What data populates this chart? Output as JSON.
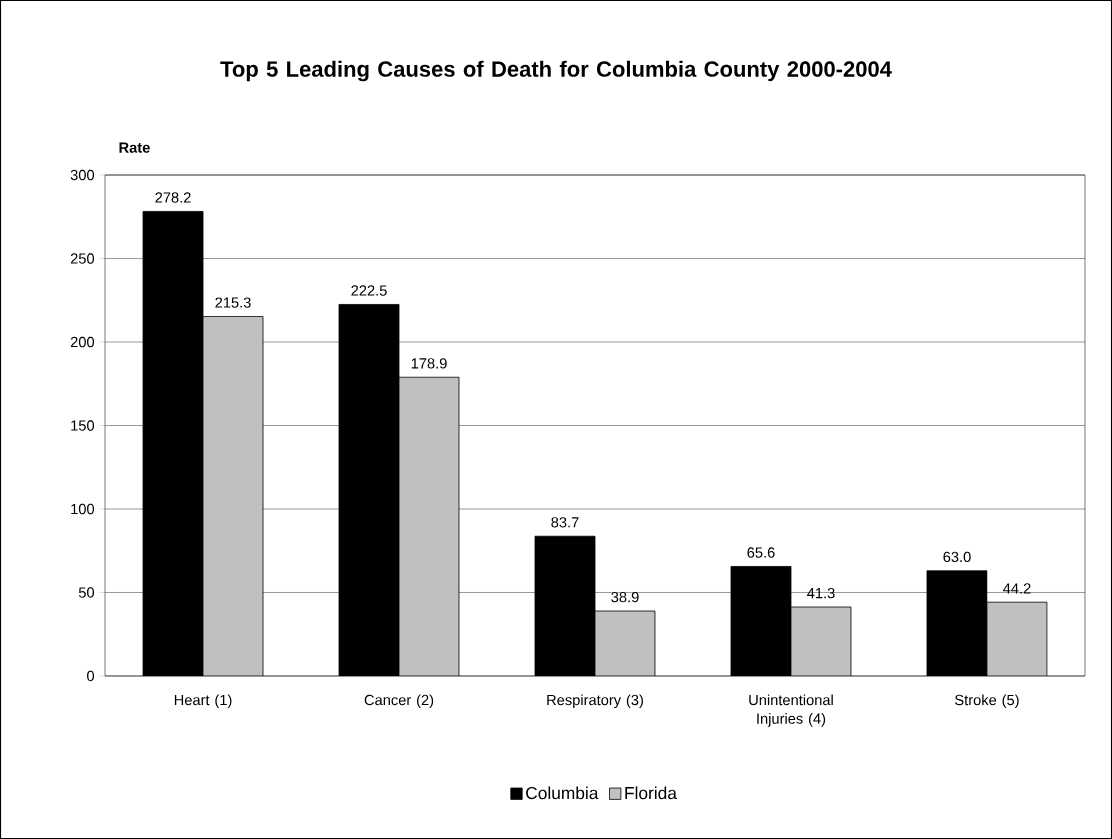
{
  "chart_data": {
    "type": "bar",
    "title": "Top 5 Leading Causes of Death for Columbia County 2000-2004",
    "ylabel": "Rate",
    "categories": [
      "Heart (1)",
      "Cancer (2)",
      "Respiratory (3)",
      "Unintentional Injuries (4)",
      "Stroke (5)"
    ],
    "series": [
      {
        "name": "Columbia",
        "color": "#000000",
        "values": [
          278.2,
          222.5,
          83.7,
          65.6,
          63.0
        ],
        "value_labels": [
          "278.2",
          "222.5",
          "83.7",
          "65.6",
          "63.0"
        ]
      },
      {
        "name": "Florida",
        "color": "#c0c0c0",
        "values": [
          215.3,
          178.9,
          38.9,
          41.3,
          44.2
        ],
        "value_labels": [
          "215.3",
          "178.9",
          "38.9",
          "41.3",
          "44.2"
        ]
      }
    ],
    "ylim": [
      0,
      300
    ],
    "yticks": [
      0,
      50,
      100,
      150,
      200,
      250,
      300
    ],
    "grid": "y",
    "legend": "bottom"
  }
}
